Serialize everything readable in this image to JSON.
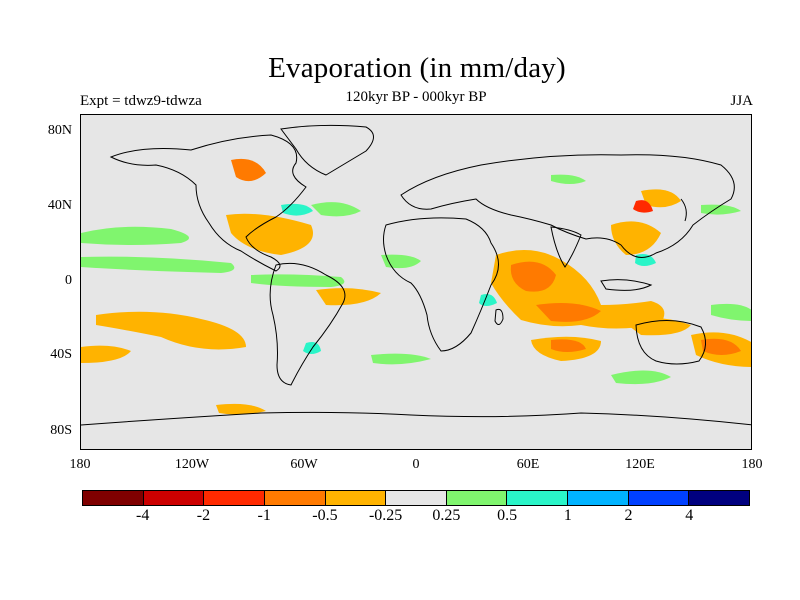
{
  "header": {
    "title": "Evaporation (in mm/day)",
    "subtitle": "120kyr BP - 000kyr BP",
    "left": "Expt = tdwz9-tdwza",
    "right": "JJA"
  },
  "map": {
    "background": "#e6e6e6",
    "lat_labels": [
      "80N",
      "40N",
      "0",
      "40S",
      "80S"
    ],
    "lon_labels": [
      "180",
      "120W",
      "60W",
      "0",
      "60E",
      "120E",
      "180"
    ]
  },
  "colorbar": {
    "colors": [
      "#7f0000",
      "#cc0000",
      "#ff2a00",
      "#ff7a00",
      "#ffb300",
      "#e6e6e6",
      "#80f56e",
      "#2af5c8",
      "#00b3ff",
      "#0040ff",
      "#00007f"
    ],
    "labels": [
      "-4",
      "-2",
      "-1",
      "-0.5",
      "-0.25",
      "0.25",
      "0.5",
      "1",
      "2",
      "4"
    ]
  }
}
